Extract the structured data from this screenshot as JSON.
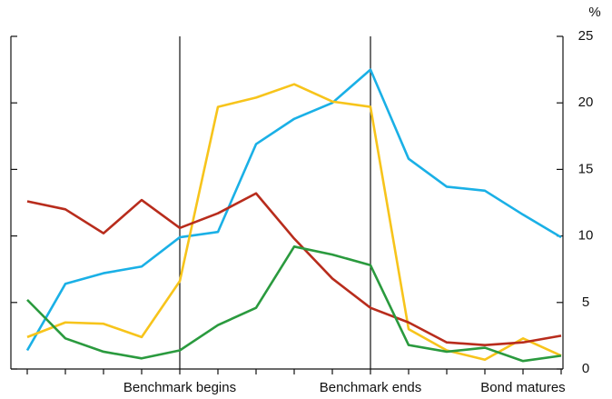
{
  "chart_data": {
    "type": "line",
    "y_label": "%",
    "categories": [
      null,
      null,
      null,
      null,
      "Benchmark begins",
      null,
      null,
      null,
      null,
      "Benchmark ends",
      null,
      null,
      null,
      "Bond matures",
      null
    ],
    "vertical_lines": [
      4,
      9
    ],
    "series": [
      {
        "color": "#1ab0e6",
        "values": [
          1.4,
          6.4,
          7.2,
          7.7,
          9.9,
          10.3,
          16.9,
          18.8,
          20.0,
          22.5,
          15.8,
          13.7,
          13.4,
          11.6,
          9.9
        ]
      },
      {
        "color": "#f7c41b",
        "values": [
          2.4,
          3.5,
          3.4,
          2.4,
          6.6,
          19.7,
          20.4,
          21.4,
          20.1,
          19.7,
          3.0,
          1.4,
          0.7,
          2.3,
          1.0
        ]
      },
      {
        "color": "#b82c1c",
        "values": [
          12.6,
          12.0,
          10.2,
          12.7,
          10.6,
          11.7,
          13.2,
          9.8,
          6.8,
          4.6,
          3.5,
          2.0,
          1.8,
          2.0,
          2.5
        ]
      },
      {
        "color": "#2a9a3e",
        "values": [
          5.2,
          2.3,
          1.3,
          0.8,
          1.4,
          3.3,
          4.6,
          9.2,
          8.6,
          7.8,
          1.8,
          1.3,
          1.6,
          0.6,
          1.0
        ]
      }
    ],
    "ylim": [
      0,
      25
    ],
    "yticks": [
      0,
      5,
      10,
      15,
      20,
      25
    ]
  }
}
